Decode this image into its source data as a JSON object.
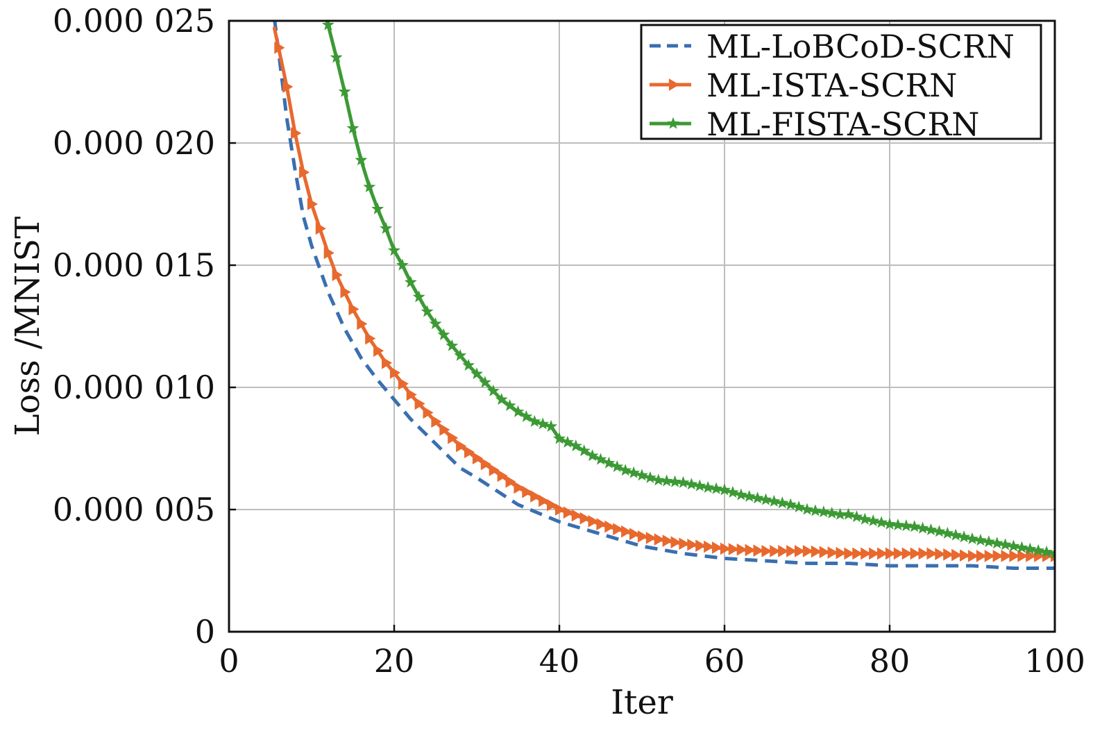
{
  "chart_data": {
    "type": "line",
    "title": "",
    "xlabel": "Iter",
    "ylabel": "Loss /MNIST",
    "xlim": [
      0,
      100
    ],
    "ylim": [
      0,
      2.5e-05
    ],
    "xticks": [
      0,
      20,
      40,
      60,
      80,
      100
    ],
    "xtick_labels": [
      "0",
      "20",
      "40",
      "60",
      "80",
      "100"
    ],
    "yticks": [
      0,
      5e-06,
      1e-05,
      1.5e-05,
      2e-05,
      2.5e-05
    ],
    "ytick_labels": [
      "0",
      "0.000 005",
      "0.000 010",
      "0.000 015",
      "0.000 020",
      "0.000 025"
    ],
    "grid": true,
    "legend_position": "top-right",
    "series": [
      {
        "name": "ML-LoBCoD-SCRN",
        "color": "#3a6fb0",
        "style": "dashed",
        "marker": "none",
        "x": [
          5.5,
          7,
          8,
          9,
          10,
          12,
          14,
          16,
          18,
          20,
          22,
          25,
          28,
          30,
          35,
          40,
          45,
          50,
          55,
          60,
          65,
          70,
          75,
          80,
          85,
          90,
          95,
          100
        ],
        "y": [
          2.51e-05,
          2.1e-05,
          1.89e-05,
          1.7e-05,
          1.58e-05,
          1.39e-05,
          1.24e-05,
          1.12e-05,
          1.03e-05,
          9.5e-06,
          8.7e-06,
          7.7e-06,
          6.7e-06,
          6.3e-06,
          5.2e-06,
          4.5e-06,
          4e-06,
          3.5e-06,
          3.2e-06,
          3e-06,
          2.9e-06,
          2.8e-06,
          2.8e-06,
          2.7e-06,
          2.7e-06,
          2.7e-06,
          2.6e-06,
          2.6e-06
        ]
      },
      {
        "name": "ML-ISTA-SCRN",
        "color": "#e8692e",
        "style": "solid",
        "marker": "triangle-right",
        "x": [
          5.5,
          7,
          8,
          9,
          10,
          11,
          12,
          13,
          14,
          15,
          16,
          17,
          18,
          19,
          20,
          22,
          25,
          28,
          30,
          35,
          40,
          45,
          50,
          55,
          60,
          65,
          70,
          75,
          80,
          85,
          90,
          95,
          100
        ],
        "y": [
          2.47e-05,
          2.23e-05,
          2.04e-05,
          1.88e-05,
          1.75e-05,
          1.65e-05,
          1.55e-05,
          1.46e-05,
          1.39e-05,
          1.32e-05,
          1.26e-05,
          1.2e-05,
          1.15e-05,
          1.1e-05,
          1.06e-05,
          9.7e-06,
          8.6e-06,
          7.6e-06,
          7.1e-06,
          5.9e-06,
          5e-06,
          4.4e-06,
          3.9e-06,
          3.6e-06,
          3.4e-06,
          3.3e-06,
          3.3e-06,
          3.2e-06,
          3.2e-06,
          3.2e-06,
          3.1e-06,
          3.1e-06,
          3.1e-06
        ]
      },
      {
        "name": "ML-FISTA-SCRN",
        "color": "#3c9a35",
        "style": "solid",
        "marker": "star",
        "x": [
          11.8,
          13,
          14,
          15,
          16,
          17,
          18,
          19,
          20,
          21,
          22,
          23,
          24,
          25,
          27,
          29,
          31,
          33,
          35,
          37,
          39,
          40,
          42,
          44,
          46,
          48,
          50,
          52,
          55,
          58,
          60,
          62,
          65,
          68,
          70,
          72,
          74,
          75,
          77,
          80,
          83,
          86,
          90,
          95,
          100
        ],
        "y": [
          2.51e-05,
          2.35e-05,
          2.21e-05,
          2.06e-05,
          1.93e-05,
          1.82e-05,
          1.73e-05,
          1.65e-05,
          1.56e-05,
          1.5e-05,
          1.43e-05,
          1.37e-05,
          1.31e-05,
          1.26e-05,
          1.17e-05,
          1.09e-05,
          1.02e-05,
          9.5e-06,
          9e-06,
          8.6e-06,
          8.4e-06,
          7.9e-06,
          7.6e-06,
          7.2e-06,
          6.9e-06,
          6.6e-06,
          6.4e-06,
          6.2e-06,
          6.1e-06,
          5.9e-06,
          5.8e-06,
          5.6e-06,
          5.4e-06,
          5.2e-06,
          5e-06,
          4.9e-06,
          4.8e-06,
          4.8e-06,
          4.6e-06,
          4.4e-06,
          4.3e-06,
          4.1e-06,
          3.8e-06,
          3.5e-06,
          3.2e-06
        ]
      }
    ]
  }
}
